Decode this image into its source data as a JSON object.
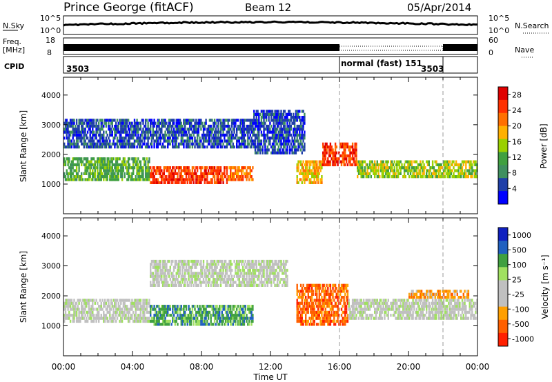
{
  "header": {
    "station": "Prince George (fitACF)",
    "beam": "Beam 12",
    "date": "05/Apr/2014"
  },
  "sky_panel": {
    "left_label": "N.Sky",
    "right_label": "N.Search",
    "left_ticks": [
      "10^5",
      "10^0"
    ],
    "right_ticks": [
      "10^5",
      "10^0"
    ]
  },
  "freq_panel": {
    "left_label": "Freq.",
    "left_unit": "[MHz]",
    "right_label": "Nave",
    "left_ticks": [
      "18",
      "8"
    ],
    "right_ticks": [
      "60",
      "0"
    ]
  },
  "cpid_panel": {
    "label": "CPID",
    "segments": [
      {
        "start": 0,
        "end": 16,
        "label": "3503"
      },
      {
        "start": 16,
        "end": 22,
        "label": "normal (fast) 151"
      },
      {
        "start": 22,
        "end": 24,
        "label": "3503"
      }
    ]
  },
  "colors": {
    "power": [
      "#0000ff",
      "#1f3fa8",
      "#3f8f5f",
      "#40a040",
      "#9ad000",
      "#ffb000",
      "#ff7000",
      "#ff3000",
      "#e00000"
    ],
    "velocity": [
      "#1020c0",
      "#2060c0",
      "#40a040",
      "#a0e060",
      "#c0c0c0",
      "#c0c0c0",
      "#ff9f00",
      "#ff6000",
      "#ff2000"
    ]
  },
  "chart_data": [
    {
      "type": "heatmap",
      "name": "power",
      "title": "",
      "ylabel": "Slant Range [km]",
      "ylim": [
        0,
        4600
      ],
      "yticks": [
        1000,
        2000,
        3000,
        4000
      ],
      "xlim": [
        0,
        24
      ],
      "xticks": [
        0,
        4,
        8,
        12,
        16,
        20,
        24
      ],
      "colorbar": {
        "label": "Power [dB]",
        "ticks": [
          "4",
          "8",
          "12",
          "16",
          "20",
          "24",
          "28"
        ],
        "range": [
          0,
          30
        ]
      },
      "bands": [
        {
          "t0": 0.0,
          "t1": 5.0,
          "r0": 1100,
          "r1": 1900,
          "level": 3
        },
        {
          "t0": 5.0,
          "t1": 9.5,
          "r0": 1000,
          "r1": 1600,
          "level": 7
        },
        {
          "t0": 9.5,
          "t1": 11.0,
          "r0": 1100,
          "r1": 1600,
          "level": 6
        },
        {
          "t0": 13.5,
          "t1": 15.0,
          "r0": 1000,
          "r1": 1800,
          "level": 5
        },
        {
          "t0": 15.0,
          "t1": 17.0,
          "r0": 1600,
          "r1": 2400,
          "level": 7
        },
        {
          "t0": 17.0,
          "t1": 24.0,
          "r0": 1200,
          "r1": 1800,
          "level": 4
        },
        {
          "t0": 0.0,
          "t1": 11.0,
          "r0": 2200,
          "r1": 3200,
          "level": 1
        },
        {
          "t0": 11.0,
          "t1": 14.0,
          "r0": 2000,
          "r1": 3500,
          "level": 1
        }
      ]
    },
    {
      "type": "heatmap",
      "name": "velocity",
      "title": "",
      "ylabel": "Slant Range [km]",
      "xlabel": "Time UT",
      "ylim": [
        0,
        4600
      ],
      "yticks": [
        1000,
        2000,
        3000,
        4000
      ],
      "xlim": [
        0,
        24
      ],
      "xticks": [
        0,
        4,
        8,
        12,
        16,
        20,
        24
      ],
      "xticklabels": [
        "00:00",
        "04:00",
        "08:00",
        "12:00",
        "16:00",
        "20:00",
        "00:00"
      ],
      "colorbar": {
        "label": "Velocity [m s⁻¹]",
        "ticks": [
          "1000",
          "500",
          "100",
          "25",
          "-25",
          "-100",
          "-500",
          "-1000"
        ]
      },
      "bands": [
        {
          "t0": 0.0,
          "t1": 5.0,
          "r0": 1100,
          "r1": 1900,
          "level": 4
        },
        {
          "t0": 5.0,
          "t1": 11.0,
          "r0": 1000,
          "r1": 1700,
          "level": 2
        },
        {
          "t0": 13.5,
          "t1": 16.5,
          "r0": 1000,
          "r1": 2400,
          "level": 7
        },
        {
          "t0": 16.5,
          "t1": 24.0,
          "r0": 1200,
          "r1": 1900,
          "level": 4
        },
        {
          "t0": 20.0,
          "t1": 23.5,
          "r0": 1900,
          "r1": 2200,
          "level": 6
        },
        {
          "t0": 5.0,
          "t1": 13.0,
          "r0": 2300,
          "r1": 3200,
          "level": 4
        }
      ]
    }
  ],
  "footer": {
    "xticklabels": [
      "00:00",
      "04:00",
      "08:00",
      "12:00",
      "16:00",
      "20:00",
      "00:00"
    ],
    "xlabel": "Time UT"
  }
}
